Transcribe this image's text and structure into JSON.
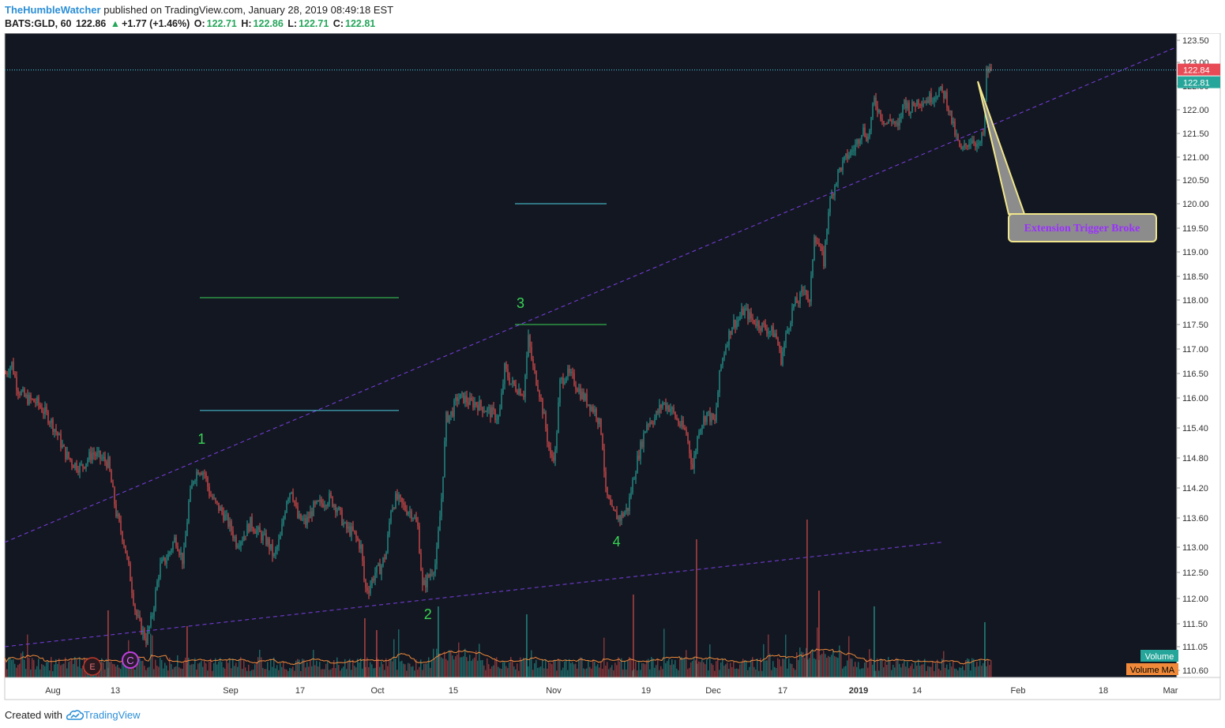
{
  "header": {
    "username": "TheHumbleWatcher",
    "published_text": "published on TradingView.com, January 28, 2019 08:49:18 EST",
    "symbol": "BATS:GLD, 60",
    "last": "122.86",
    "change": "+1.77 (+1.46%)",
    "o_label": "O:",
    "o_val": "122.71",
    "h_label": "H:",
    "h_val": "122.86",
    "l_label": "L:",
    "l_val": "122.71",
    "c_label": "C:",
    "c_val": "122.81"
  },
  "footer": {
    "created_with": "Created with",
    "brand": "TradingView"
  },
  "colors": {
    "background": "#131722",
    "up": "#26a69a",
    "down": "#ef5350",
    "trendline": "#7b3fe4",
    "volume_ma": "#f08a3a",
    "wave_label": "#39d353",
    "callout_border": "#f0e68c",
    "callout_text": "#9b30ff",
    "price_tag_red": "#e84b56",
    "price_tag_green": "#26a69a"
  },
  "chart_data": {
    "type": "candlestick",
    "symbol": "BATS:GLD",
    "interval": "60",
    "y_axis_ticks": [
      "123.50",
      "123.00",
      "122.50",
      "122.00",
      "121.50",
      "121.00",
      "120.50",
      "120.00",
      "119.50",
      "119.00",
      "118.50",
      "118.00",
      "117.50",
      "117.00",
      "116.50",
      "116.00",
      "115.40",
      "114.80",
      "114.20",
      "113.60",
      "113.00",
      "112.50",
      "112.00",
      "111.50",
      "111.05",
      "110.60"
    ],
    "x_axis_ticks": [
      "Aug",
      "13",
      "Sep",
      "17",
      "Oct",
      "15",
      "Nov",
      "19",
      "Dec",
      "17",
      "2019",
      "14",
      "Feb",
      "18",
      "Mar"
    ],
    "price_tags": {
      "upper": "122.84",
      "lower": "122.81"
    },
    "price_path": [
      [
        0,
        116.5
      ],
      [
        8,
        116.7
      ],
      [
        15,
        116.2
      ],
      [
        25,
        116.0
      ],
      [
        40,
        115.9
      ],
      [
        55,
        115.6
      ],
      [
        65,
        115.3
      ],
      [
        75,
        114.9
      ],
      [
        85,
        114.7
      ],
      [
        95,
        114.6
      ],
      [
        110,
        114.9
      ],
      [
        120,
        114.8
      ],
      [
        130,
        114.7
      ],
      [
        140,
        113.7
      ],
      [
        150,
        113.1
      ],
      [
        158,
        112.4
      ],
      [
        165,
        111.7
      ],
      [
        172,
        111.4
      ],
      [
        178,
        111.2
      ],
      [
        185,
        111.6
      ],
      [
        195,
        112.6
      ],
      [
        205,
        112.8
      ],
      [
        215,
        113.2
      ],
      [
        225,
        112.7
      ],
      [
        232,
        113.9
      ],
      [
        238,
        114.4
      ],
      [
        245,
        114.6
      ],
      [
        252,
        114.5
      ],
      [
        258,
        114.1
      ],
      [
        265,
        113.9
      ],
      [
        275,
        113.7
      ],
      [
        285,
        113.4
      ],
      [
        292,
        113.1
      ],
      [
        300,
        113.2
      ],
      [
        310,
        113.5
      ],
      [
        320,
        113.3
      ],
      [
        332,
        113.1
      ],
      [
        340,
        112.8
      ],
      [
        348,
        113.2
      ],
      [
        356,
        114.0
      ],
      [
        362,
        114.2
      ],
      [
        370,
        113.6
      ],
      [
        380,
        113.5
      ],
      [
        390,
        113.8
      ],
      [
        400,
        113.9
      ],
      [
        410,
        114.0
      ],
      [
        420,
        113.8
      ],
      [
        430,
        113.4
      ],
      [
        440,
        113.3
      ],
      [
        450,
        113.0
      ],
      [
        455,
        112.2
      ],
      [
        460,
        112.2
      ],
      [
        468,
        112.5
      ],
      [
        475,
        112.6
      ],
      [
        482,
        112.9
      ],
      [
        488,
        113.8
      ],
      [
        495,
        114.0
      ],
      [
        505,
        113.8
      ],
      [
        515,
        113.7
      ],
      [
        522,
        113.4
      ],
      [
        528,
        112.2
      ],
      [
        535,
        112.4
      ],
      [
        545,
        112.7
      ],
      [
        552,
        114.0
      ],
      [
        558,
        115.6
      ],
      [
        565,
        115.7
      ],
      [
        572,
        116.0
      ],
      [
        580,
        116.0
      ],
      [
        588,
        115.9
      ],
      [
        595,
        115.9
      ],
      [
        605,
        115.8
      ],
      [
        615,
        115.7
      ],
      [
        625,
        115.6
      ],
      [
        632,
        116.6
      ],
      [
        640,
        116.3
      ],
      [
        648,
        116.2
      ],
      [
        656,
        116.1
      ],
      [
        662,
        117.2
      ],
      [
        668,
        116.6
      ],
      [
        675,
        116.2
      ],
      [
        682,
        115.6
      ],
      [
        690,
        114.8
      ],
      [
        696,
        114.9
      ],
      [
        702,
        116.3
      ],
      [
        710,
        116.5
      ],
      [
        718,
        116.4
      ],
      [
        728,
        116.1
      ],
      [
        738,
        115.9
      ],
      [
        748,
        115.7
      ],
      [
        755,
        115.3
      ],
      [
        760,
        114.1
      ],
      [
        768,
        113.7
      ],
      [
        778,
        113.6
      ],
      [
        788,
        113.8
      ],
      [
        795,
        114.4
      ],
      [
        802,
        114.9
      ],
      [
        812,
        115.5
      ],
      [
        822,
        115.6
      ],
      [
        832,
        115.9
      ],
      [
        842,
        115.8
      ],
      [
        852,
        115.5
      ],
      [
        862,
        115.3
      ],
      [
        870,
        114.6
      ],
      [
        878,
        115.4
      ],
      [
        888,
        115.7
      ],
      [
        898,
        115.5
      ],
      [
        905,
        116.6
      ],
      [
        912,
        117.1
      ],
      [
        920,
        117.5
      ],
      [
        928,
        117.6
      ],
      [
        935,
        117.8
      ],
      [
        945,
        117.6
      ],
      [
        955,
        117.5
      ],
      [
        965,
        117.4
      ],
      [
        975,
        117.3
      ],
      [
        982,
        116.8
      ],
      [
        990,
        117.4
      ],
      [
        998,
        117.9
      ],
      [
        1005,
        118.0
      ],
      [
        1012,
        118.3
      ],
      [
        1018,
        117.9
      ],
      [
        1024,
        119.4
      ],
      [
        1030,
        119.1
      ],
      [
        1036,
        118.8
      ],
      [
        1042,
        119.9
      ],
      [
        1048,
        120.3
      ],
      [
        1055,
        120.7
      ],
      [
        1065,
        121.0
      ],
      [
        1075,
        121.2
      ],
      [
        1085,
        121.6
      ],
      [
        1092,
        121.4
      ],
      [
        1100,
        122.2
      ],
      [
        1108,
        121.9
      ],
      [
        1115,
        121.7
      ],
      [
        1122,
        121.8
      ],
      [
        1130,
        121.6
      ],
      [
        1138,
        122.2
      ],
      [
        1145,
        122.0
      ],
      [
        1155,
        122.2
      ],
      [
        1165,
        122.2
      ],
      [
        1175,
        122.3
      ],
      [
        1182,
        122.4
      ],
      [
        1190,
        122.3
      ],
      [
        1196,
        121.9
      ],
      [
        1202,
        121.5
      ],
      [
        1210,
        121.1
      ],
      [
        1218,
        121.3
      ],
      [
        1225,
        121.4
      ],
      [
        1232,
        121.2
      ],
      [
        1238,
        121.5
      ],
      [
        1242,
        122.8
      ],
      [
        1248,
        122.84
      ]
    ],
    "wave_labels": [
      {
        "text": "1",
        "x_frac": 0.168
      },
      {
        "text": "2",
        "x_frac": 0.361
      },
      {
        "text": "3",
        "x_frac": 0.44
      },
      {
        "text": "4",
        "x_frac": 0.522
      }
    ],
    "horizontal_levels": [
      {
        "price": 120.0,
        "color": "#4dd0e1"
      },
      {
        "price": 118.05,
        "color": "#39d353"
      },
      {
        "price": 117.5,
        "color": "#39d353"
      },
      {
        "price": 115.75,
        "color": "#4dd0e1"
      }
    ],
    "annotation": "Extension Trigger Broke",
    "legend": {
      "volume": "Volume",
      "volume_ma": "Volume MA"
    },
    "event_markers": [
      "E",
      "C"
    ]
  }
}
